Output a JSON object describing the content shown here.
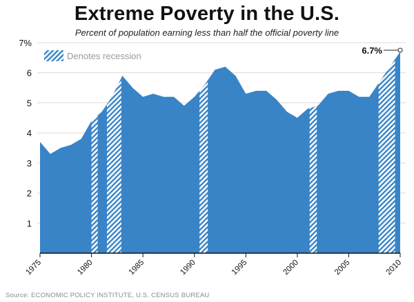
{
  "chart_data": {
    "type": "area",
    "title": "Extreme Poverty in the U.S.",
    "subtitle": "Percent of population earning less than half the official poverty line",
    "source": "Source: ECONOMIC POLICY INSTITUTE, U.S. CENSUS BUREAU",
    "x": [
      1975,
      1976,
      1977,
      1978,
      1979,
      1980,
      1981,
      1982,
      1983,
      1984,
      1985,
      1986,
      1987,
      1988,
      1989,
      1990,
      1991,
      1992,
      1993,
      1994,
      1995,
      1996,
      1997,
      1998,
      1999,
      2000,
      2001,
      2002,
      2003,
      2004,
      2005,
      2006,
      2007,
      2008,
      2009,
      2010
    ],
    "values": [
      3.7,
      3.3,
      3.5,
      3.6,
      3.8,
      4.4,
      4.7,
      5.2,
      5.9,
      5.5,
      5.2,
      5.3,
      5.2,
      5.2,
      4.9,
      5.2,
      5.6,
      6.1,
      6.2,
      5.9,
      5.3,
      5.4,
      5.4,
      5.1,
      4.7,
      4.5,
      4.8,
      4.9,
      5.3,
      5.4,
      5.4,
      5.2,
      5.2,
      5.7,
      6.2,
      6.7
    ],
    "recessions": [
      [
        1980.0,
        1980.6
      ],
      [
        1981.5,
        1982.9
      ],
      [
        1990.5,
        1991.3
      ],
      [
        2001.2,
        2001.9
      ],
      [
        2007.9,
        2009.5
      ]
    ],
    "ylim": [
      0,
      7
    ],
    "xlim": [
      1975,
      2010
    ],
    "yticks": [
      1,
      2,
      3,
      4,
      5,
      6,
      7
    ],
    "ytick_labels": [
      "1",
      "2",
      "3",
      "4",
      "5",
      "6",
      "7%"
    ],
    "xticks": [
      1975,
      1980,
      1985,
      1990,
      1995,
      2000,
      2005,
      2010
    ],
    "xtick_labels": [
      "1975",
      "1980",
      "1985",
      "1990",
      "1995",
      "2000",
      "2005",
      "2010"
    ],
    "legend_label": "Denotes recession",
    "legend_position": "top-left",
    "end_label": "6.7%",
    "colors": {
      "area": "#3884c7",
      "grid": "#d9d9d9",
      "axis": "#111111",
      "legend_text": "#999999"
    }
  }
}
